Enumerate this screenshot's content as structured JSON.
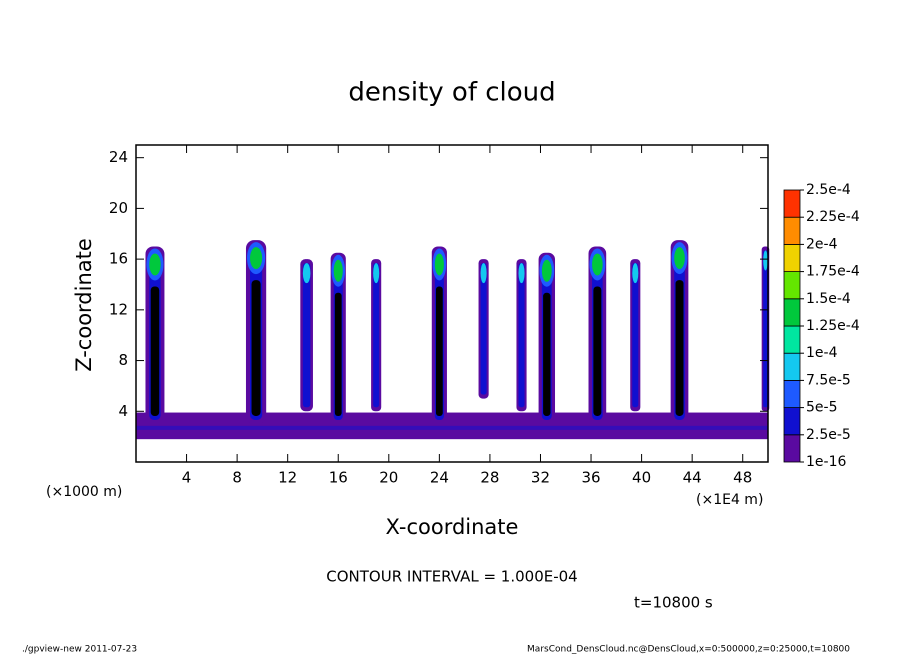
{
  "chart_data": {
    "type": "contour",
    "title": "density of cloud",
    "xlabel": "X-coordinate",
    "ylabel": "Z-coordinate",
    "x_unit_left": "(×1000 m)",
    "x_unit_right": "(×1E4 m)",
    "xlim": [
      0,
      50
    ],
    "ylim": [
      0,
      25
    ],
    "xticks": [
      4,
      8,
      12,
      16,
      20,
      24,
      28,
      32,
      36,
      40,
      44,
      48
    ],
    "yticks": [
      4,
      8,
      12,
      16,
      20,
      24
    ],
    "levels": [
      1e-16,
      {
        "value": 2.5e-05,
        "label": "2.5e-5"
      },
      {
        "value": 5e-05,
        "label": "5e-5"
      },
      {
        "value": 7.5e-05,
        "label": "7.5e-5"
      },
      {
        "value": 0.0001,
        "label": "1e-4"
      },
      {
        "value": 0.000125,
        "label": "1.25e-4"
      },
      {
        "value": 0.00015,
        "label": "1.5e-4"
      },
      {
        "value": 0.000175,
        "label": "1.75e-4"
      },
      {
        "value": 0.0002,
        "label": "2e-4"
      },
      {
        "value": 0.000225,
        "label": "2.25e-4"
      },
      {
        "value": 0.00025,
        "label": "2.5e-4"
      }
    ],
    "level_colors": [
      "#5a0aa0",
      "#1010d0",
      "#1e5aff",
      "#14c8f0",
      "#00e6a0",
      "#00c83c",
      "#64e600",
      "#f0d200",
      "#ff8c00",
      "#ff3200"
    ],
    "core_color": "#000000",
    "layer": {
      "x": [
        0,
        50
      ],
      "z_bottom": 1.8,
      "z_top": 3.9
    },
    "columns": [
      {
        "x": 1.5,
        "z_bottom": 3,
        "z_top": 17,
        "width": 1.5,
        "core": true
      },
      {
        "x": 9.5,
        "z_bottom": 3,
        "z_top": 17.5,
        "width": 1.6,
        "core": true
      },
      {
        "x": 13.5,
        "z_bottom": 4,
        "z_top": 16,
        "width": 1.0,
        "core": false
      },
      {
        "x": 16,
        "z_bottom": 3,
        "z_top": 16.5,
        "width": 1.2,
        "core": true
      },
      {
        "x": 19,
        "z_bottom": 4,
        "z_top": 16,
        "width": 0.8,
        "core": false
      },
      {
        "x": 24,
        "z_bottom": 3,
        "z_top": 17,
        "width": 1.2,
        "core": true
      },
      {
        "x": 27.5,
        "z_bottom": 5,
        "z_top": 16,
        "width": 0.8,
        "core": false
      },
      {
        "x": 30.5,
        "z_bottom": 4,
        "z_top": 16,
        "width": 0.8,
        "core": false
      },
      {
        "x": 32.5,
        "z_bottom": 3,
        "z_top": 16.5,
        "width": 1.3,
        "core": true
      },
      {
        "x": 36.5,
        "z_bottom": 3,
        "z_top": 17,
        "width": 1.4,
        "core": true
      },
      {
        "x": 39.5,
        "z_bottom": 4,
        "z_top": 16,
        "width": 0.8,
        "core": false
      },
      {
        "x": 43,
        "z_bottom": 3,
        "z_top": 17.5,
        "width": 1.4,
        "core": true
      },
      {
        "x": 49.8,
        "z_bottom": 4,
        "z_top": 17,
        "width": 0.6,
        "core": false
      }
    ],
    "contour_interval": "CONTOUR INTERVAL = 1.000E-04",
    "time_label": "t=10800 s",
    "footer_left": "./gpview-new  2011-07-23",
    "footer_right": "MarsCond_DensCloud.nc@DensCloud,x=0:500000,z=0:25000,t=10800"
  }
}
